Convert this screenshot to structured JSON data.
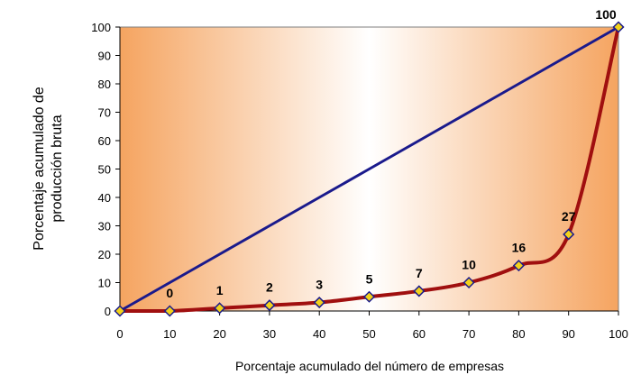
{
  "chart_data": {
    "type": "line",
    "xlabel": "Porcentaje acumulado del número de empresas",
    "ylabel_lines": [
      "Porcentaje acumulado de",
      "producción bruta"
    ],
    "xlim": [
      0,
      100
    ],
    "ylim": [
      0,
      100
    ],
    "x_ticks": [
      0,
      10,
      20,
      30,
      40,
      50,
      60,
      70,
      80,
      90,
      100
    ],
    "y_ticks": [
      0,
      10,
      20,
      30,
      40,
      50,
      60,
      70,
      80,
      90,
      100
    ],
    "grid": false,
    "legend": "none",
    "series": [
      {
        "x": [
          0,
          10,
          20,
          30,
          40,
          50,
          60,
          70,
          80,
          90,
          100
        ],
        "y": [
          0,
          10,
          20,
          30,
          40,
          50,
          60,
          70,
          80,
          90,
          100
        ],
        "color": "#1a1a8c"
      },
      {
        "x": [
          0,
          10,
          20,
          30,
          40,
          50,
          60,
          70,
          80,
          90,
          100
        ],
        "y": [
          0,
          0,
          1,
          2,
          3,
          5,
          7,
          10,
          16,
          27,
          100
        ],
        "data_labels": [
          "",
          "0",
          "1",
          "2",
          "3",
          "5",
          "7",
          "10",
          "16",
          "27",
          "100"
        ],
        "color": "#a00f0f",
        "marker_color": "#1a1a8c",
        "marker_fill": "#f2d21b"
      }
    ],
    "background_gradient": [
      "#f5a460",
      "#ffffff"
    ]
  }
}
